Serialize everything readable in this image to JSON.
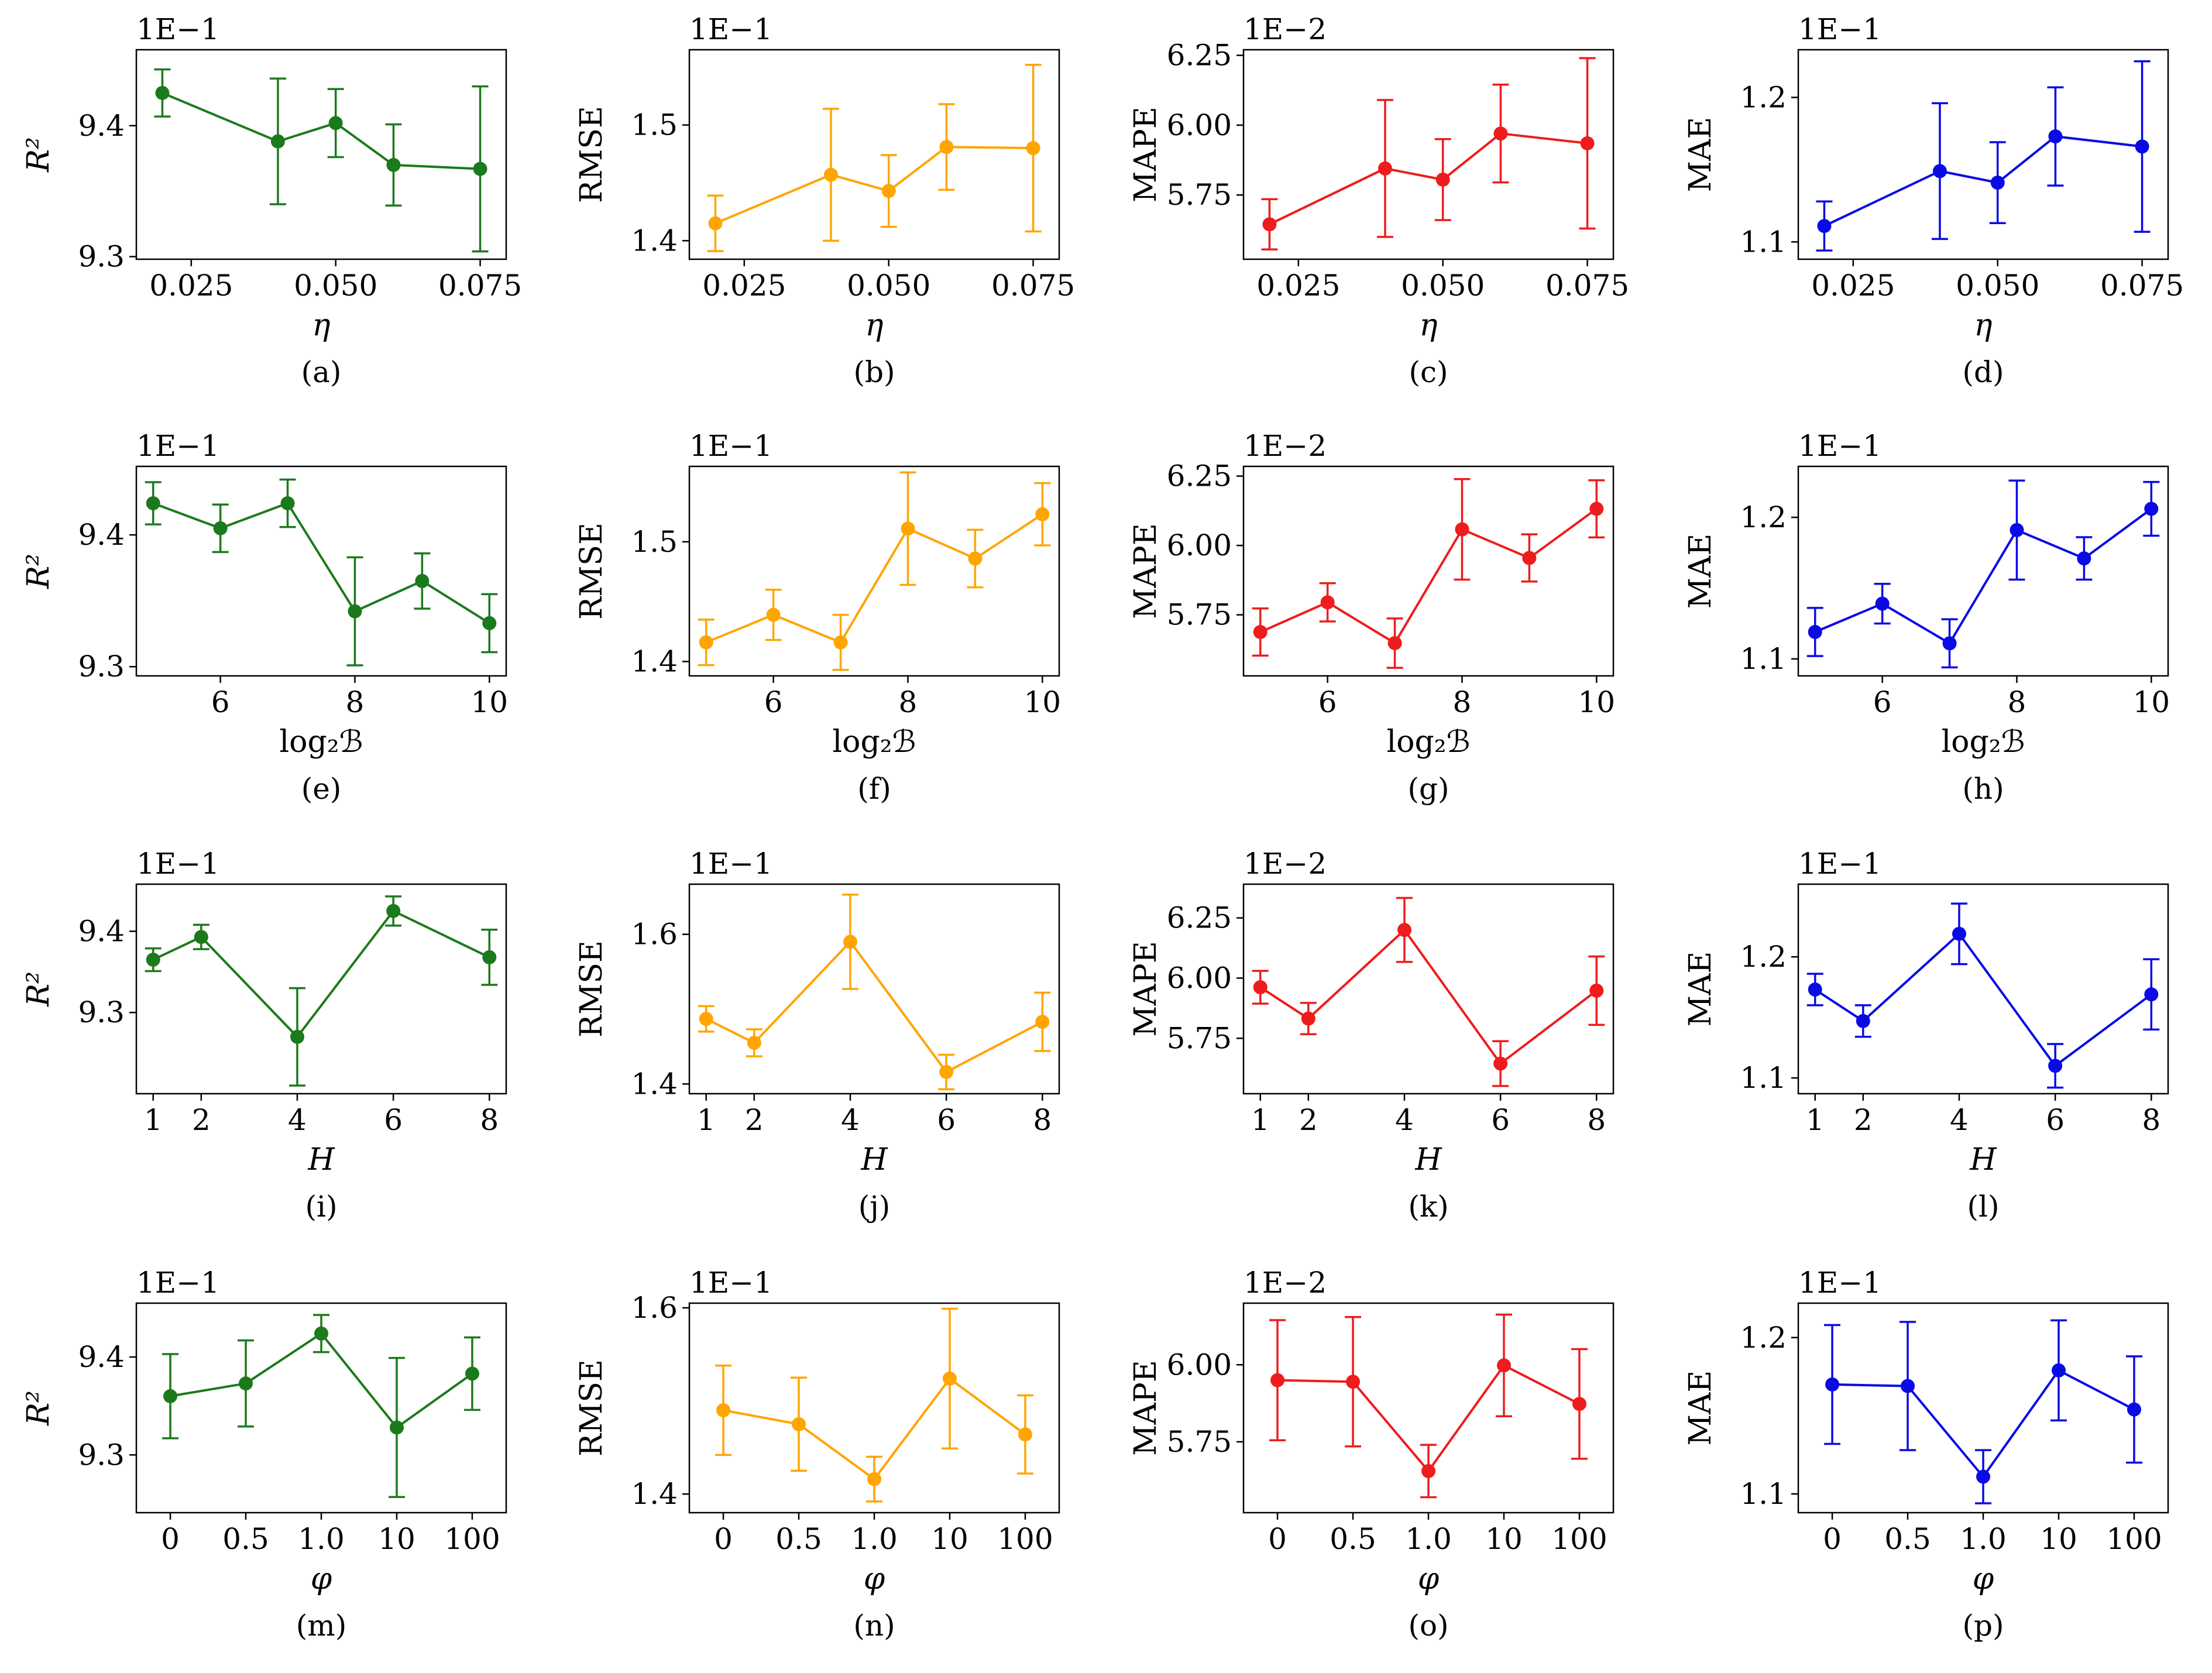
{
  "figure": {
    "colors": {
      "r2": "#1b7a1b",
      "rmse": "#ffa500",
      "mape": "#ee1c1c",
      "mae": "#0a0ae6"
    }
  },
  "chart_data": [
    {
      "id": "a",
      "type": "line",
      "panel_label": "(a)",
      "ylabel": "R²",
      "ylabel_style": "italic-power",
      "xlabel": "η",
      "xlabel_style": "italic",
      "multiplier": "1E−1",
      "color": "#1b7a1b",
      "xscale": "linear",
      "x": [
        0.02,
        0.04,
        0.05,
        0.06,
        0.075
      ],
      "xticks": [
        0.025,
        0.05,
        0.075
      ],
      "xtick_labels": [
        "0.025",
        "0.050",
        "0.075"
      ],
      "xlim": [
        0.0155,
        0.0795
      ],
      "y": [
        9.425,
        9.388,
        9.402,
        9.37,
        9.367
      ],
      "yerr": [
        0.018,
        0.048,
        0.026,
        0.031,
        0.063
      ],
      "ylim": [
        9.298,
        9.458
      ],
      "yticks": [
        9.3,
        9.4
      ],
      "ytick_labels": [
        "9.3",
        "9.4"
      ]
    },
    {
      "id": "b",
      "type": "line",
      "panel_label": "(b)",
      "ylabel": "RMSE",
      "xlabel": "η",
      "xlabel_style": "italic",
      "multiplier": "1E−1",
      "color": "#ffa500",
      "xscale": "linear",
      "x": [
        0.02,
        0.04,
        0.05,
        0.06,
        0.075
      ],
      "xticks": [
        0.025,
        0.05,
        0.075
      ],
      "xtick_labels": [
        "0.025",
        "0.050",
        "0.075"
      ],
      "xlim": [
        0.0155,
        0.0795
      ],
      "y": [
        1.415,
        1.457,
        1.443,
        1.481,
        1.48
      ],
      "yerr": [
        0.024,
        0.057,
        0.031,
        0.037,
        0.072
      ],
      "ylim": [
        1.384,
        1.565
      ],
      "yticks": [
        1.4,
        1.5
      ],
      "ytick_labels": [
        "1.4",
        "1.5"
      ]
    },
    {
      "id": "c",
      "type": "line",
      "panel_label": "(c)",
      "ylabel": "MAPE",
      "xlabel": "η",
      "xlabel_style": "italic",
      "multiplier": "1E−2",
      "color": "#ee1c1c",
      "xscale": "linear",
      "x": [
        0.02,
        0.04,
        0.05,
        0.06,
        0.075
      ],
      "xticks": [
        0.025,
        0.05,
        0.075
      ],
      "xtick_labels": [
        "0.025",
        "0.050",
        "0.075"
      ],
      "xlim": [
        0.0155,
        0.0795
      ],
      "y": [
        5.645,
        5.845,
        5.805,
        5.97,
        5.935
      ],
      "yerr": [
        0.09,
        0.245,
        0.145,
        0.175,
        0.305
      ],
      "ylim": [
        5.52,
        6.27
      ],
      "yticks": [
        5.75,
        6.0,
        6.25
      ],
      "ytick_labels": [
        "5.75",
        "6.00",
        "6.25"
      ]
    },
    {
      "id": "d",
      "type": "line",
      "panel_label": "(d)",
      "ylabel": "MAE",
      "xlabel": "η",
      "xlabel_style": "italic",
      "multiplier": "1E−1",
      "color": "#0a0ae6",
      "xscale": "linear",
      "x": [
        0.02,
        0.04,
        0.05,
        0.06,
        0.075
      ],
      "xticks": [
        0.025,
        0.05,
        0.075
      ],
      "xtick_labels": [
        "0.025",
        "0.050",
        "0.075"
      ],
      "xlim": [
        0.0155,
        0.0795
      ],
      "y": [
        1.111,
        1.149,
        1.141,
        1.173,
        1.166
      ],
      "yerr": [
        0.017,
        0.047,
        0.028,
        0.034,
        0.059
      ],
      "ylim": [
        1.088,
        1.233
      ],
      "yticks": [
        1.1,
        1.2
      ],
      "ytick_labels": [
        "1.1",
        "1.2"
      ]
    },
    {
      "id": "e",
      "type": "line",
      "panel_label": "(e)",
      "ylabel": "R²",
      "ylabel_style": "italic-power",
      "xlabel": "log₂ℬ",
      "xlabel_style": "log2",
      "multiplier": "1E−1",
      "color": "#1b7a1b",
      "xscale": "linear",
      "x": [
        5,
        6,
        7,
        8,
        9,
        10
      ],
      "xticks": [
        6,
        8,
        10
      ],
      "xtick_labels": [
        "6",
        "8",
        "10"
      ],
      "xlim": [
        4.75,
        10.25
      ],
      "y": [
        9.424,
        9.405,
        9.424,
        9.342,
        9.365,
        9.333
      ],
      "yerr": [
        0.016,
        0.018,
        0.018,
        0.041,
        0.021,
        0.022
      ],
      "ylim": [
        9.293,
        9.452
      ],
      "yticks": [
        9.3,
        9.4
      ],
      "ytick_labels": [
        "9.3",
        "9.4"
      ]
    },
    {
      "id": "f",
      "type": "line",
      "panel_label": "(f)",
      "ylabel": "RMSE",
      "xlabel": "log₂ℬ",
      "xlabel_style": "log2",
      "multiplier": "1E−1",
      "color": "#ffa500",
      "xscale": "linear",
      "x": [
        5,
        6,
        7,
        8,
        9,
        10
      ],
      "xticks": [
        6,
        8,
        10
      ],
      "xtick_labels": [
        "6",
        "8",
        "10"
      ],
      "xlim": [
        4.75,
        10.25
      ],
      "y": [
        1.416,
        1.439,
        1.416,
        1.511,
        1.486,
        1.523
      ],
      "yerr": [
        0.019,
        0.021,
        0.023,
        0.047,
        0.024,
        0.026
      ],
      "ylim": [
        1.388,
        1.563
      ],
      "yticks": [
        1.4,
        1.5
      ],
      "ytick_labels": [
        "1.4",
        "1.5"
      ]
    },
    {
      "id": "g",
      "type": "line",
      "panel_label": "(g)",
      "ylabel": "MAPE",
      "xlabel": "log₂ℬ",
      "xlabel_style": "log2",
      "multiplier": "1E−2",
      "color": "#ee1c1c",
      "xscale": "linear",
      "x": [
        5,
        6,
        7,
        8,
        9,
        10
      ],
      "xticks": [
        6,
        8,
        10
      ],
      "xtick_labels": [
        "6",
        "8",
        "10"
      ],
      "xlim": [
        4.75,
        10.25
      ],
      "y": [
        5.688,
        5.795,
        5.648,
        6.058,
        5.955,
        6.132
      ],
      "yerr": [
        0.085,
        0.069,
        0.089,
        0.181,
        0.085,
        0.103
      ],
      "ylim": [
        5.53,
        6.285
      ],
      "yticks": [
        5.75,
        6.0,
        6.25
      ],
      "ytick_labels": [
        "5.75",
        "6.00",
        "6.25"
      ]
    },
    {
      "id": "h",
      "type": "line",
      "panel_label": "(h)",
      "ylabel": "MAE",
      "xlabel": "log₂ℬ",
      "xlabel_style": "log2",
      "multiplier": "1E−1",
      "color": "#0a0ae6",
      "xscale": "linear",
      "x": [
        5,
        6,
        7,
        8,
        9,
        10
      ],
      "xticks": [
        6,
        8,
        10
      ],
      "xtick_labels": [
        "6",
        "8",
        "10"
      ],
      "xlim": [
        4.75,
        10.25
      ],
      "y": [
        1.119,
        1.139,
        1.111,
        1.191,
        1.171,
        1.206
      ],
      "yerr": [
        0.017,
        0.014,
        0.017,
        0.035,
        0.015,
        0.019
      ],
      "ylim": [
        1.088,
        1.236
      ],
      "yticks": [
        1.1,
        1.2
      ],
      "ytick_labels": [
        "1.1",
        "1.2"
      ]
    },
    {
      "id": "i",
      "type": "line",
      "panel_label": "(i)",
      "ylabel": "R²",
      "ylabel_style": "italic-power",
      "xlabel": "H",
      "xlabel_style": "italic",
      "multiplier": "1E−1",
      "color": "#1b7a1b",
      "xscale": "linear",
      "x": [
        1,
        2,
        4,
        6,
        8
      ],
      "xticks": [
        1,
        2,
        4,
        6,
        8
      ],
      "xtick_labels": [
        "1",
        "2",
        "4",
        "6",
        "8"
      ],
      "xlim": [
        0.65,
        8.35
      ],
      "y": [
        9.365,
        9.393,
        9.27,
        9.425,
        9.368
      ],
      "yerr": [
        0.014,
        0.015,
        0.06,
        0.018,
        0.034
      ],
      "ylim": [
        9.2,
        9.458
      ],
      "yticks": [
        9.3,
        9.4
      ],
      "ytick_labels": [
        "9.3",
        "9.4"
      ]
    },
    {
      "id": "j",
      "type": "line",
      "panel_label": "(j)",
      "ylabel": "RMSE",
      "xlabel": "H",
      "xlabel_style": "italic",
      "multiplier": "1E−1",
      "color": "#ffa500",
      "xscale": "linear",
      "x": [
        1,
        2,
        4,
        6,
        8
      ],
      "xticks": [
        1,
        2,
        4,
        6,
        8
      ],
      "xtick_labels": [
        "1",
        "2",
        "4",
        "6",
        "8"
      ],
      "xlim": [
        0.65,
        8.35
      ],
      "y": [
        1.487,
        1.455,
        1.59,
        1.416,
        1.483
      ],
      "yerr": [
        0.017,
        0.018,
        0.063,
        0.023,
        0.039
      ],
      "ylim": [
        1.387,
        1.667
      ],
      "yticks": [
        1.4,
        1.6
      ],
      "ytick_labels": [
        "1.4",
        "1.6"
      ]
    },
    {
      "id": "k",
      "type": "line",
      "panel_label": "(k)",
      "ylabel": "MAPE",
      "xlabel": "H",
      "xlabel_style": "italic",
      "multiplier": "1E−2",
      "color": "#ee1c1c",
      "xscale": "linear",
      "x": [
        1,
        2,
        4,
        6,
        8
      ],
      "xticks": [
        1,
        2,
        4,
        6,
        8
      ],
      "xtick_labels": [
        "1",
        "2",
        "4",
        "6",
        "8"
      ],
      "xlim": [
        0.65,
        8.35
      ],
      "y": [
        5.962,
        5.832,
        6.2,
        5.645,
        5.948
      ],
      "yerr": [
        0.068,
        0.065,
        0.133,
        0.093,
        0.142
      ],
      "ylim": [
        5.52,
        6.39
      ],
      "yticks": [
        5.75,
        6.0,
        6.25
      ],
      "ytick_labels": [
        "5.75",
        "6.00",
        "6.25"
      ]
    },
    {
      "id": "l",
      "type": "line",
      "panel_label": "(l)",
      "ylabel": "MAE",
      "xlabel": "H",
      "xlabel_style": "italic",
      "multiplier": "1E−1",
      "color": "#0a0ae6",
      "xscale": "linear",
      "x": [
        1,
        2,
        4,
        6,
        8
      ],
      "xticks": [
        1,
        2,
        4,
        6,
        8
      ],
      "xtick_labels": [
        "1",
        "2",
        "4",
        "6",
        "8"
      ],
      "xlim": [
        0.65,
        8.35
      ],
      "y": [
        1.173,
        1.147,
        1.219,
        1.11,
        1.169
      ],
      "yerr": [
        0.013,
        0.013,
        0.025,
        0.018,
        0.029
      ],
      "ylim": [
        1.087,
        1.26
      ],
      "yticks": [
        1.1,
        1.2
      ],
      "ytick_labels": [
        "1.1",
        "1.2"
      ]
    },
    {
      "id": "m",
      "type": "line",
      "panel_label": "(m)",
      "ylabel": "R²",
      "ylabel_style": "italic-power",
      "xlabel": "φ",
      "xlabel_style": "italic",
      "multiplier": "1E−1",
      "color": "#1b7a1b",
      "xscale": "category",
      "x": [
        "0",
        "0.5",
        "1.0",
        "10",
        "100"
      ],
      "xticks": [
        "0",
        "0.5",
        "1.0",
        "10",
        "100"
      ],
      "xtick_labels": [
        "0",
        "0.5",
        "1.0",
        "10",
        "100"
      ],
      "y": [
        9.36,
        9.373,
        9.424,
        9.328,
        9.383
      ],
      "yerr": [
        0.043,
        0.044,
        0.019,
        0.071,
        0.037
      ],
      "ylim": [
        9.241,
        9.455
      ],
      "yticks": [
        9.3,
        9.4
      ],
      "ytick_labels": [
        "9.3",
        "9.4"
      ]
    },
    {
      "id": "n",
      "type": "line",
      "panel_label": "(n)",
      "ylabel": "RMSE",
      "xlabel": "φ",
      "xlabel_style": "italic",
      "multiplier": "1E−1",
      "color": "#ffa500",
      "xscale": "category",
      "x": [
        "0",
        "0.5",
        "1.0",
        "10",
        "100"
      ],
      "xticks": [
        "0",
        "0.5",
        "1.0",
        "10",
        "100"
      ],
      "xtick_labels": [
        "0",
        "0.5",
        "1.0",
        "10",
        "100"
      ],
      "y": [
        1.49,
        1.475,
        1.416,
        1.524,
        1.464
      ],
      "yerr": [
        0.048,
        0.05,
        0.024,
        0.075,
        0.042
      ],
      "ylim": [
        1.38,
        1.605
      ],
      "yticks": [
        1.4,
        1.6
      ],
      "ytick_labels": [
        "1.4",
        "1.6"
      ]
    },
    {
      "id": "o",
      "type": "line",
      "panel_label": "(o)",
      "ylabel": "MAPE",
      "xlabel": "φ",
      "xlabel_style": "italic",
      "multiplier": "1E−2",
      "color": "#ee1c1c",
      "xscale": "category",
      "x": [
        "0",
        "0.5",
        "1.0",
        "10",
        "100"
      ],
      "xticks": [
        "0",
        "0.5",
        "1.0",
        "10",
        "100"
      ],
      "xtick_labels": [
        "0",
        "0.5",
        "1.0",
        "10",
        "100"
      ],
      "y": [
        5.95,
        5.945,
        5.655,
        5.998,
        5.873
      ],
      "yerr": [
        0.195,
        0.21,
        0.085,
        0.165,
        0.178
      ],
      "ylim": [
        5.52,
        6.2
      ],
      "yticks": [
        5.75,
        6.0
      ],
      "ytick_labels": [
        "5.75",
        "6.00"
      ]
    },
    {
      "id": "p",
      "type": "line",
      "panel_label": "(p)",
      "ylabel": "MAE",
      "xlabel": "φ",
      "xlabel_style": "italic",
      "multiplier": "1E−1",
      "color": "#0a0ae6",
      "xscale": "category",
      "x": [
        "0",
        "0.5",
        "1.0",
        "10",
        "100"
      ],
      "xticks": [
        "0",
        "0.5",
        "1.0",
        "10",
        "100"
      ],
      "xtick_labels": [
        "0",
        "0.5",
        "1.0",
        "10",
        "100"
      ],
      "y": [
        1.17,
        1.169,
        1.111,
        1.179,
        1.154
      ],
      "yerr": [
        0.038,
        0.041,
        0.017,
        0.032,
        0.034
      ],
      "ylim": [
        1.088,
        1.222
      ],
      "yticks": [
        1.1,
        1.2
      ],
      "ytick_labels": [
        "1.1",
        "1.2"
      ]
    }
  ]
}
